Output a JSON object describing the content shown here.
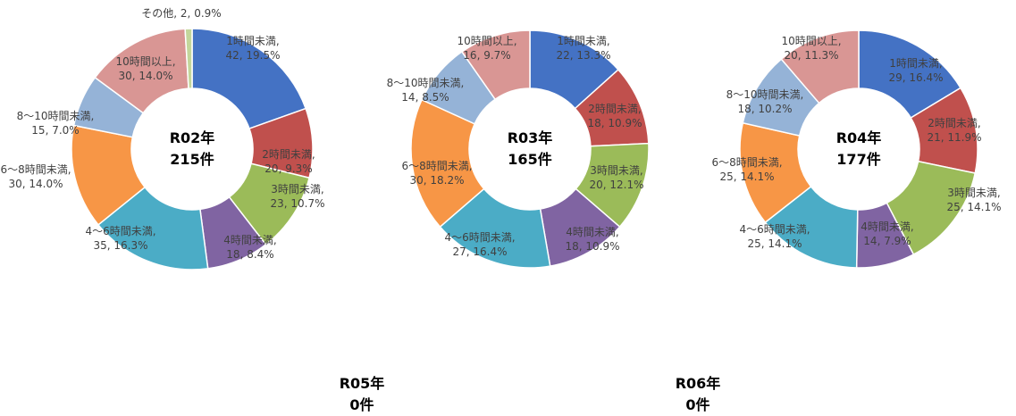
{
  "colors": {
    "1h": "#4472C4",
    "2h": "#C0504D",
    "3h": "#9BBB59",
    "4h": "#8064A2",
    "4to6": "#4BACC6",
    "6to8": "#F79646",
    "8to10": "#95B3D7",
    "10plus": "#D99694",
    "other": "#C3D69B"
  },
  "chart_data": [
    {
      "type": "pie",
      "donut": true,
      "center_title": "R02年",
      "center_total": "215件",
      "slices": [
        {
          "key": "1h",
          "label": "1時間未満,",
          "value": 42,
          "pct_text": "42, 19.5%"
        },
        {
          "key": "2h",
          "label": "2時間未満,",
          "value": 20,
          "pct_text": "20, 9.3%"
        },
        {
          "key": "3h",
          "label": "3時間未満,",
          "value": 23,
          "pct_text": "23, 10.7%"
        },
        {
          "key": "4h",
          "label": "4時間未満,",
          "value": 18,
          "pct_text": "18, 8.4%"
        },
        {
          "key": "4to6",
          "label": "4～6時間未満,",
          "value": 35,
          "pct_text": "35, 16.3%"
        },
        {
          "key": "6to8",
          "label": "6～8時間未満,",
          "value": 30,
          "pct_text": "30, 14.0%"
        },
        {
          "key": "8to10",
          "label": "8～10時間未満,",
          "value": 15,
          "pct_text": "15, 7.0%"
        },
        {
          "key": "10plus",
          "label": "10時間以上,",
          "value": 30,
          "pct_text": "30, 14.0%"
        },
        {
          "key": "other",
          "label": "その他, 2, 0.9%",
          "value": 2,
          "pct_text": ""
        }
      ]
    },
    {
      "type": "pie",
      "donut": true,
      "center_title": "R03年",
      "center_total": "165件",
      "slices": [
        {
          "key": "1h",
          "label": "1時間未満,",
          "value": 22,
          "pct_text": "22, 13.3%"
        },
        {
          "key": "2h",
          "label": "2時間未満,",
          "value": 18,
          "pct_text": "18, 10.9%"
        },
        {
          "key": "3h",
          "label": "3時間未満,",
          "value": 20,
          "pct_text": "20, 12.1%"
        },
        {
          "key": "4h",
          "label": "4時間未満,",
          "value": 18,
          "pct_text": "18, 10.9%"
        },
        {
          "key": "4to6",
          "label": "4～6時間未満,",
          "value": 27,
          "pct_text": "27, 16.4%"
        },
        {
          "key": "6to8",
          "label": "6～8時間未満,",
          "value": 30,
          "pct_text": "30, 18.2%"
        },
        {
          "key": "8to10",
          "label": "8～10時間未満,",
          "value": 14,
          "pct_text": "14, 8.5%"
        },
        {
          "key": "10plus",
          "label": "10時間以上,",
          "value": 16,
          "pct_text": "16, 9.7%"
        }
      ]
    },
    {
      "type": "pie",
      "donut": true,
      "center_title": "R04年",
      "center_total": "177件",
      "slices": [
        {
          "key": "1h",
          "label": "1時間未満,",
          "value": 29,
          "pct_text": "29, 16.4%"
        },
        {
          "key": "2h",
          "label": "2時間未満,",
          "value": 21,
          "pct_text": "21, 11.9%"
        },
        {
          "key": "3h",
          "label": "3時間未満,",
          "value": 25,
          "pct_text": "25, 14.1%"
        },
        {
          "key": "4h",
          "label": "4時間未満,",
          "value": 14,
          "pct_text": "14, 7.9%"
        },
        {
          "key": "4to6",
          "label": "4～6時間未満,",
          "value": 25,
          "pct_text": "25, 14.1%"
        },
        {
          "key": "6to8",
          "label": "6～8時間未満,",
          "value": 25,
          "pct_text": "25, 14.1%"
        },
        {
          "key": "8to10",
          "label": "8～10時間未満,",
          "value": 18,
          "pct_text": "18, 10.2%"
        },
        {
          "key": "10plus",
          "label": "10時間以上,",
          "value": 20,
          "pct_text": "20, 11.3%"
        }
      ]
    },
    {
      "type": "pie",
      "donut": true,
      "center_title": "R05年",
      "center_total": "0件",
      "slices": []
    },
    {
      "type": "pie",
      "donut": true,
      "center_title": "R06年",
      "center_total": "0件",
      "slices": []
    }
  ]
}
